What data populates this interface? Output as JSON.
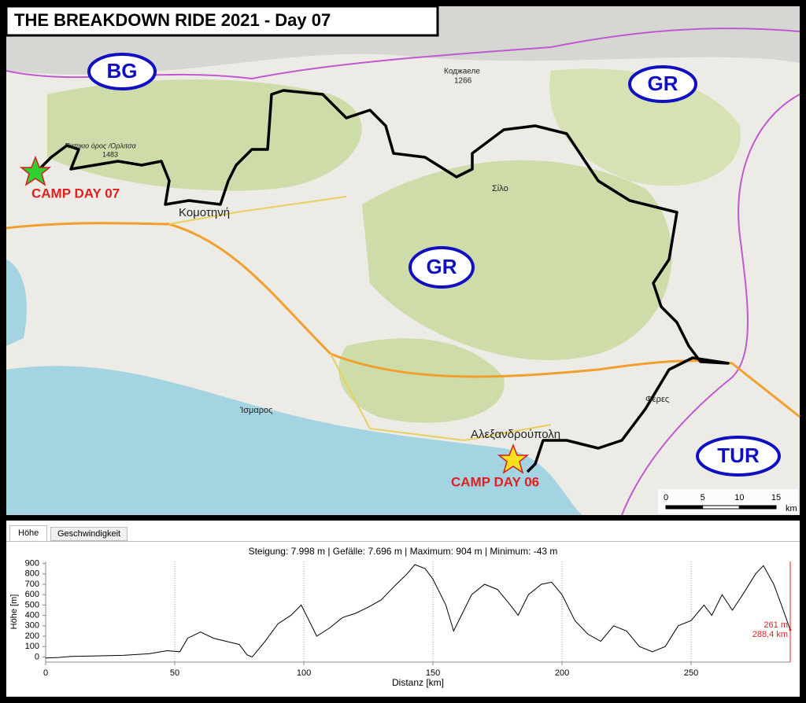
{
  "map": {
    "title": "THE BREAKDOWN RIDE 2021 - Day 07",
    "country_labels": [
      "BG",
      "GR",
      "GR",
      "TUR"
    ],
    "camps": [
      "CAMP DAY 07",
      "CAMP DAY 06"
    ],
    "places": [
      "Κομοτηνή",
      "Αλεξανδρούπολη",
      "Σίλο",
      "Φέρες",
      "Ίσμαρος",
      "Коджаеле",
      "1266",
      "Παπικιο όρος /Ορλιτσα",
      "1483"
    ],
    "scale": {
      "ticks": [
        0,
        5,
        10,
        15
      ],
      "unit": "km"
    }
  },
  "ui": {
    "tabs": [
      "Höhe",
      "Geschwindigkeit"
    ],
    "stats": "Steigung: 7.998 m | Gefälle: 7.696 m | Maximum: 904 m | Minimum: -43 m"
  },
  "chart_data": {
    "type": "line",
    "x_label": "Distanz [km]",
    "y_label": "Höhe [m]",
    "x": [
      0,
      5,
      10,
      20,
      30,
      40,
      47,
      52,
      55,
      60,
      65,
      70,
      75,
      78,
      80,
      85,
      90,
      95,
      99,
      102,
      105,
      110,
      115,
      120,
      125,
      130,
      135,
      140,
      143,
      147,
      150,
      155,
      158,
      162,
      165,
      170,
      175,
      180,
      183,
      187,
      192,
      196,
      200,
      205,
      210,
      215,
      220,
      225,
      230,
      235,
      240,
      245,
      250,
      255,
      258,
      262,
      266,
      270,
      275,
      278,
      282,
      285,
      288.4
    ],
    "series": [
      {
        "name": "Höhe",
        "color": "#000000",
        "values": [
          -10,
          -5,
          5,
          10,
          15,
          30,
          60,
          50,
          180,
          240,
          180,
          150,
          120,
          20,
          0,
          150,
          320,
          400,
          500,
          350,
          200,
          280,
          380,
          420,
          480,
          550,
          680,
          800,
          890,
          850,
          750,
          500,
          250,
          450,
          600,
          700,
          650,
          500,
          400,
          600,
          700,
          720,
          600,
          350,
          220,
          150,
          300,
          250,
          100,
          50,
          100,
          300,
          350,
          500,
          400,
          600,
          450,
          600,
          800,
          880,
          700,
          500,
          261
        ]
      }
    ],
    "xlim": [
      0,
      288.4
    ],
    "ylim": [
      -50,
      920
    ],
    "xticks": [
      0,
      50,
      100,
      150,
      200,
      250
    ],
    "yticks": [
      0,
      100,
      200,
      300,
      400,
      500,
      600,
      700,
      800,
      900
    ],
    "grid": true,
    "cursor": {
      "x": 288.4,
      "y": 261,
      "x_label": "288,4 km",
      "y_label": "261 m",
      "color": "#e02020"
    }
  }
}
